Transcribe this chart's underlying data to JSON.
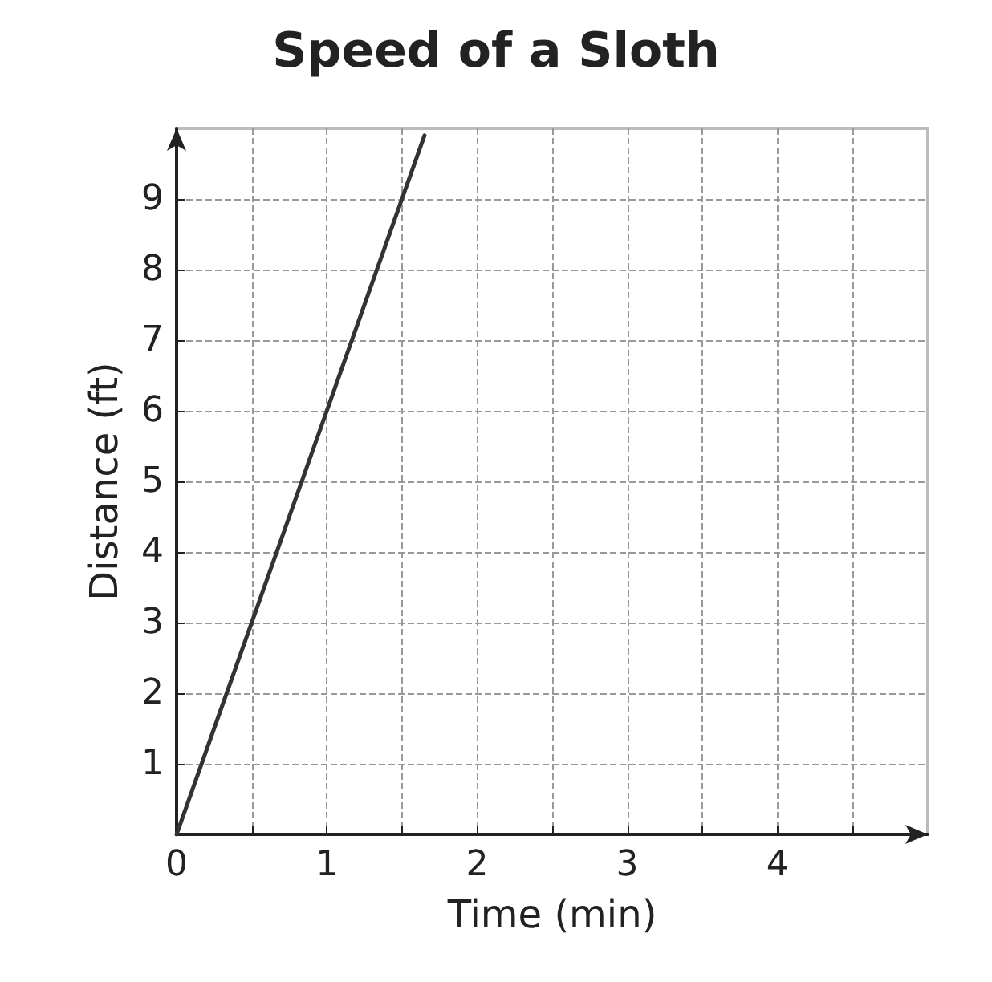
{
  "chart_data": {
    "type": "line",
    "title": "Speed of a Sloth",
    "xlabel": "Time (min)",
    "ylabel": "Distance (ft)",
    "x": [
      0,
      1,
      1.65
    ],
    "series": [
      {
        "color": "#333333",
        "values": [
          0,
          6,
          9.9
        ]
      }
    ],
    "xlim": [
      0,
      5
    ],
    "ylim": [
      0,
      10
    ],
    "xticks": [
      {
        "value": 0,
        "label": "0"
      },
      {
        "value": 0.5,
        "label": null
      },
      1,
      {
        "value": 1.5,
        "label": null
      },
      2,
      {
        "value": 2.5,
        "label": null
      },
      3,
      {
        "value": 3.5,
        "label": null
      },
      4,
      {
        "value": 4.5,
        "label": null
      }
    ],
    "yticks": [
      {
        "value": 0,
        "label": null
      },
      1,
      2,
      3,
      4,
      5,
      6,
      7,
      8,
      9
    ],
    "grid": true,
    "marker": "none",
    "line_style": "solid"
  }
}
